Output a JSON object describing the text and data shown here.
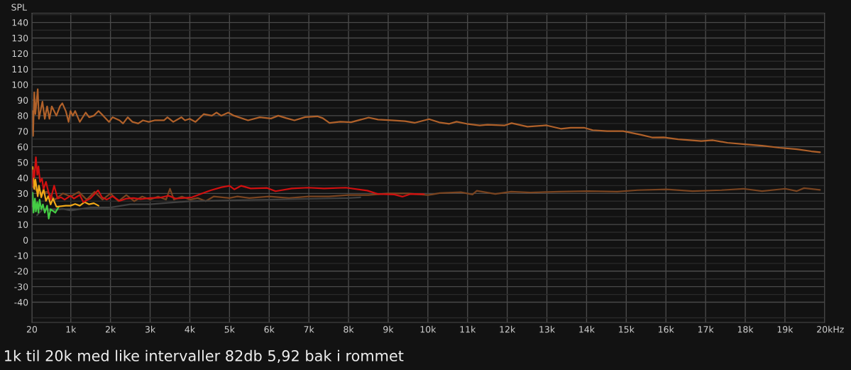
{
  "chart_data": {
    "type": "line",
    "ylabel": "SPL",
    "annotations": [
      "1k til 20k med like intervaller 82db 5,92 bak i rommet"
    ],
    "xlim": [
      20,
      20000
    ],
    "ylim": [
      -53,
      146
    ],
    "xticks": [
      20,
      {
        "value": 1000,
        "label": "1k"
      },
      {
        "value": 2000,
        "label": "2k"
      },
      {
        "value": 3000,
        "label": "3k"
      },
      {
        "value": 4000,
        "label": "4k"
      },
      {
        "value": 5000,
        "label": "5k"
      },
      {
        "value": 6000,
        "label": "6k"
      },
      {
        "value": 7000,
        "label": "7k"
      },
      {
        "value": 8000,
        "label": "8k"
      },
      {
        "value": 9000,
        "label": "9k"
      },
      {
        "value": 10000,
        "label": "10k"
      },
      {
        "value": 11000,
        "label": "11k"
      },
      {
        "value": 12000,
        "label": "12k"
      },
      {
        "value": 13000,
        "label": "13k"
      },
      {
        "value": 14000,
        "label": "14k"
      },
      {
        "value": 15000,
        "label": "15k"
      },
      {
        "value": 16000,
        "label": "16k"
      },
      {
        "value": 17000,
        "label": "17k"
      },
      {
        "value": 18000,
        "label": "18k"
      },
      {
        "value": 19000,
        "label": "19k"
      },
      {
        "value": 20000,
        "label": "20k"
      }
    ],
    "xlabel": "Hz",
    "yticks": [
      {
        "value": -50,
        "label": null
      },
      -40,
      {
        "value": -35,
        "label": null
      },
      -30,
      {
        "value": -25,
        "label": null
      },
      -20,
      {
        "value": -15,
        "label": null
      },
      -10,
      {
        "value": -5,
        "label": null
      },
      0,
      {
        "value": 5,
        "label": null
      },
      10,
      {
        "value": 15,
        "label": null
      },
      20,
      {
        "value": 25,
        "label": null
      },
      30,
      {
        "value": 35,
        "label": null
      },
      40,
      {
        "value": 45,
        "label": null
      },
      50,
      {
        "value": 55,
        "label": null
      },
      60,
      {
        "value": 65,
        "label": null
      },
      70,
      {
        "value": 75,
        "label": null
      },
      80,
      {
        "value": 85,
        "label": null
      },
      90,
      {
        "value": 95,
        "label": null
      },
      100,
      {
        "value": 105,
        "label": null
      },
      110,
      {
        "value": 115,
        "label": null
      },
      120,
      {
        "value": 125,
        "label": null
      },
      130,
      {
        "value": 135,
        "label": null
      },
      140,
      {
        "value": 145,
        "label": null
      }
    ],
    "grid": true,
    "series": [
      {
        "color": "#7a4420",
        "x": [
          20,
          200,
          400,
          600,
          800,
          1000,
          1200,
          1400,
          1600,
          1800,
          2000,
          2200,
          2400,
          2600,
          2800,
          3000,
          3200,
          3400,
          3500,
          3600,
          3800,
          4000,
          4200,
          4400,
          4600,
          5000,
          5200,
          5500,
          6000,
          6500,
          7000,
          7500,
          8000,
          8500,
          9000,
          9500,
          10000,
          10100,
          10300,
          10832,
          11124,
          11234,
          11700,
          12100,
          12584,
          13314,
          14044,
          14774,
          15285,
          16015,
          16672,
          17400,
          17950,
          18424,
          19008,
          19300,
          19482,
          19884
        ],
        "values": [
          35,
          30,
          31,
          26,
          30,
          28,
          31,
          26,
          31,
          26,
          30,
          25,
          29,
          25,
          28,
          26,
          28,
          26,
          33,
          26,
          28,
          26,
          27,
          25,
          28,
          27,
          28,
          27,
          28,
          27,
          28,
          28,
          29,
          29,
          30,
          30,
          29,
          29.3,
          30.2,
          30.8,
          29.3,
          31.7,
          29.6,
          31.1,
          30.6,
          31.1,
          31.5,
          31.1,
          32.1,
          32.6,
          31.5,
          32.1,
          33,
          31.5,
          33,
          31.5,
          33.4,
          32.3
        ]
      },
      {
        "color": "#404040",
        "x": [
          150,
          300,
          500,
          800,
          1000,
          1500,
          2000,
          2500,
          3000,
          3500,
          4000,
          5000,
          6000,
          7000,
          8000,
          8300
        ],
        "values": [
          16,
          20,
          19,
          20,
          19,
          21,
          21,
          23,
          23,
          24,
          25,
          25.5,
          26,
          26.5,
          27,
          27.5
        ]
      },
      {
        "color": "#44cc44",
        "x": [
          20,
          38,
          61,
          97,
          120,
          155,
          185,
          214,
          255,
          297,
          344,
          403,
          444,
          491,
          609,
          697
        ],
        "values": [
          21.4,
          30.5,
          17.6,
          26.7,
          18.3,
          24.4,
          17.6,
          26,
          19.8,
          22.9,
          17.6,
          22.1,
          13.8,
          19.8,
          17.6,
          21.4
        ]
      },
      {
        "color": "#f0a818",
        "x": [
          20,
          38,
          79,
          108,
          167,
          197,
          256,
          315,
          374,
          433,
          492,
          550,
          639,
          874,
          992,
          1110,
          1227,
          1345,
          1463,
          1581,
          1699
        ],
        "values": [
          38,
          47,
          32.8,
          38.9,
          28.2,
          35,
          27.5,
          32.8,
          25.2,
          28.2,
          22.9,
          26.7,
          21.4,
          22.1,
          22.1,
          23.2,
          22.1,
          24.4,
          23,
          23.7,
          22.1
        ]
      },
      {
        "color": "#d01010",
        "x": [
          20,
          50,
          79,
          120,
          155,
          185,
          226,
          273,
          315,
          374,
          433,
          492,
          580,
          668,
          757,
          845,
          992,
          1080,
          1227,
          1316,
          1493,
          1687,
          1787,
          1905,
          2052,
          2229,
          2406,
          2583,
          2759,
          2995,
          3230,
          3466,
          3643,
          3820,
          4055,
          4291,
          4526,
          4800,
          5000,
          5120,
          5296,
          5534,
          5950,
          6161,
          6569,
          6977,
          7385,
          7929,
          8473,
          8745,
          9153,
          9357,
          9561,
          9900
        ],
        "values": [
          34.3,
          45,
          40.4,
          53.3,
          42,
          47.3,
          37.4,
          39.6,
          32.8,
          37.4,
          31.3,
          26,
          35,
          26.7,
          27.5,
          26,
          28.5,
          26.7,
          29,
          24.4,
          26.7,
          32,
          27.5,
          26,
          28.2,
          25.2,
          26.7,
          27,
          26.3,
          27,
          27.2,
          28.5,
          26.7,
          27,
          27.5,
          29.8,
          32,
          34,
          34.9,
          32.6,
          34.9,
          33.2,
          33.5,
          31.4,
          33.2,
          33.7,
          33.2,
          33.7,
          31.8,
          29.6,
          29.3,
          27.9,
          29.6,
          29.5
        ]
      },
      {
        "color": "#b0612a",
        "x": [
          20,
          32,
          49,
          79,
          108,
          167,
          197,
          285,
          344,
          403,
          462,
          521,
          638,
          727,
          786,
          874,
          945,
          992,
          1051,
          1110,
          1227,
          1375,
          1463,
          1581,
          1699,
          1816,
          1964,
          2052,
          2229,
          2317,
          2435,
          2553,
          2700,
          2818,
          2965,
          3112,
          3348,
          3436,
          3583,
          3790,
          3878,
          3996,
          4143,
          4349,
          4555,
          4673,
          4791,
          4968,
          5115,
          5468,
          5763,
          6045,
          6229,
          6433,
          6637,
          6909,
          7215,
          7351,
          7521,
          7793,
          8065,
          8507,
          8745,
          9085,
          9425,
          9664,
          10029,
          10285,
          10540,
          10723,
          10978,
          11307,
          11500,
          11927,
          12110,
          12511,
          12986,
          13351,
          13600,
          13935,
          14154,
          14519,
          14920,
          15358,
          15650,
          15942,
          16307,
          16891,
          17183,
          17548,
          17986,
          18424,
          18862,
          19300,
          19665,
          19884
        ],
        "values": [
          70,
          83,
          67,
          95,
          81,
          97,
          78,
          89,
          78,
          86,
          78,
          86,
          80,
          86,
          88,
          83,
          76,
          83,
          80,
          83,
          76,
          82,
          79,
          80,
          83,
          80,
          76,
          79,
          77,
          75,
          79,
          76,
          75,
          77,
          76,
          77,
          77,
          79,
          76,
          79,
          77,
          78,
          76,
          81,
          80,
          82,
          80,
          82,
          80,
          77,
          79,
          78.2,
          80,
          78.4,
          77,
          79.1,
          79.6,
          78.4,
          75.3,
          76.1,
          75.8,
          78.8,
          77.5,
          77,
          76.5,
          75.4,
          77.8,
          75.7,
          74.8,
          76.1,
          74.8,
          73.7,
          74.2,
          73.7,
          75.2,
          72.9,
          73.8,
          71.6,
          72.2,
          72.3,
          70.7,
          70.1,
          70.1,
          67.8,
          66,
          66.1,
          64.8,
          63.7,
          64.2,
          62.6,
          61.6,
          60.7,
          59.4,
          58.4,
          57.1,
          56.5
        ]
      }
    ]
  }
}
